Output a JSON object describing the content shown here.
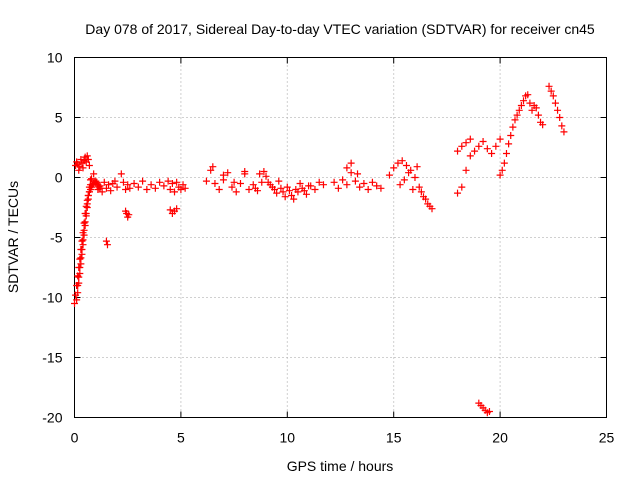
{
  "chart_data": {
    "type": "scatter",
    "title": "Day 078 of 2017, Sidereal Day-to-day VTEC variation (SDTVAR) for receiver cn45",
    "xlabel": "GPS time / hours",
    "ylabel": "SDTVAR / TECUs",
    "xlim": [
      0,
      25
    ],
    "ylim": [
      -20,
      10
    ],
    "x_ticks": [
      0,
      5,
      10,
      15,
      20,
      25
    ],
    "y_ticks": [
      -20,
      -15,
      -10,
      -5,
      0,
      5,
      10
    ],
    "grid": true,
    "legend": "none",
    "marker": "+",
    "color": "#ff0000",
    "series": [
      {
        "name": "SDTVAR",
        "x": [
          0.0,
          0.05,
          0.1,
          0.15,
          0.2,
          0.25,
          0.3,
          0.35,
          0.4,
          0.45,
          0.5,
          0.55,
          0.6,
          0.65,
          0.7,
          0.75,
          0.8,
          0.85,
          0.9,
          0.95,
          1.0,
          1.05,
          1.1,
          1.15,
          1.2,
          0.1,
          0.15,
          0.2,
          0.25,
          0.3,
          0.35,
          0.4,
          0.45,
          0.5,
          0.55,
          0.6,
          0.65,
          0.7,
          0.75,
          0.8,
          0.15,
          0.2,
          0.25,
          0.3,
          0.35,
          0.4,
          0.45,
          0.5,
          0.55,
          0.6,
          0.65,
          0.7,
          0.75,
          0.05,
          0.1,
          0.15,
          0.2,
          0.25,
          0.3,
          0.35,
          0.4,
          0.45,
          0.5,
          0.55,
          0.6,
          0.65,
          0.7,
          0.9,
          1.0,
          1.1,
          1.2,
          1.3,
          1.4,
          1.5,
          1.6,
          1.7,
          1.8,
          1.9,
          2.0,
          1.5,
          1.55,
          2.4,
          2.45,
          2.5,
          2.55,
          2.2,
          2.3,
          2.4,
          2.5,
          2.6,
          2.8,
          3.0,
          3.2,
          3.4,
          3.6,
          3.8,
          4.0,
          4.2,
          4.4,
          4.5,
          4.6,
          4.7,
          4.8,
          4.9,
          5.0,
          5.1,
          5.2,
          4.5,
          4.6,
          4.7,
          4.8,
          6.2,
          6.4,
          6.6,
          6.8,
          7.0,
          7.2,
          7.4,
          7.6,
          7.8,
          8.0,
          8.2,
          8.4,
          8.6,
          8.8,
          6.5,
          7.0,
          7.5,
          8.0,
          8.5,
          9.0,
          8.7,
          8.9,
          9.1,
          9.3,
          9.5,
          9.7,
          9.9,
          10.1,
          10.3,
          10.5,
          10.7,
          10.9,
          11.1,
          11.3,
          11.5,
          11.7,
          9.2,
          9.4,
          9.6,
          9.8,
          10.0,
          10.2,
          10.4,
          10.6,
          10.8,
          11.0,
          12.2,
          12.4,
          12.6,
          12.8,
          13.0,
          13.2,
          13.4,
          13.6,
          13.8,
          14.0,
          14.2,
          14.4,
          12.8,
          13.0,
          13.3,
          14.8,
          15.0,
          15.2,
          15.4,
          15.6,
          15.8,
          16.0,
          16.2,
          16.4,
          16.6,
          16.8,
          15.3,
          15.5,
          15.7,
          15.9,
          16.1,
          16.3,
          16.5,
          16.7,
          18.0,
          18.2,
          18.4,
          18.6,
          18.8,
          19.0,
          19.2,
          19.4,
          19.6,
          19.8,
          20.0,
          18.0,
          18.2,
          18.4,
          18.6,
          19.0,
          19.1,
          19.2,
          19.3,
          19.4,
          19.5,
          20.0,
          20.1,
          20.2,
          20.3,
          20.4,
          20.5,
          20.6,
          20.7,
          20.8,
          20.9,
          21.0,
          21.1,
          21.2,
          21.3,
          21.4,
          21.5,
          21.6,
          21.7,
          21.8,
          21.9,
          22.0,
          22.3,
          22.4,
          22.5,
          22.6,
          22.7,
          22.8,
          22.9,
          23.0
        ],
        "y": [
          -10.5,
          -9.8,
          -9.0,
          -8.2,
          -7.5,
          -6.8,
          -6.0,
          -5.3,
          -4.6,
          -3.8,
          -3.0,
          -2.4,
          -1.9,
          -1.5,
          -1.2,
          -1.0,
          -0.8,
          -0.6,
          -0.5,
          -0.4,
          -0.3,
          -0.4,
          -0.6,
          -0.8,
          -0.9,
          -10.2,
          -9.6,
          -8.8,
          -8.0,
          -7.2,
          -6.4,
          -5.6,
          -4.8,
          -4.0,
          -3.2,
          -2.5,
          -1.8,
          -1.2,
          -0.6,
          -0.1,
          -9.0,
          -8.3,
          -7.5,
          -6.7,
          -6.0,
          -5.2,
          -4.4,
          -3.7,
          -3.0,
          -2.2,
          -1.5,
          -0.8,
          -0.2,
          1.0,
          1.3,
          1.1,
          0.6,
          0.9,
          1.5,
          1.2,
          0.8,
          1.4,
          1.7,
          1.3,
          1.8,
          1.5,
          1.0,
          0.3,
          -0.5,
          -1.0,
          -0.7,
          -1.2,
          -0.4,
          -0.9,
          -0.6,
          -1.1,
          -0.5,
          -0.3,
          -0.8,
          -5.3,
          -5.6,
          -2.8,
          -3.0,
          -3.3,
          -3.1,
          0.3,
          -0.4,
          -1.0,
          -0.6,
          -0.9,
          -0.5,
          -0.8,
          -0.3,
          -1.0,
          -0.6,
          -0.9,
          -0.4,
          -0.7,
          -0.3,
          -1.0,
          -0.5,
          -1.2,
          -0.4,
          -0.8,
          -1.0,
          -0.6,
          -0.9,
          -2.7,
          -3.0,
          -2.8,
          -2.6,
          -0.3,
          0.6,
          -0.5,
          -1.0,
          -0.2,
          0.4,
          -0.8,
          -1.2,
          -0.5,
          0.3,
          -1.0,
          -0.6,
          -1.1,
          -0.4,
          0.9,
          0.2,
          -0.4,
          0.5,
          -0.9,
          0.1,
          0.3,
          0.5,
          -0.4,
          -0.8,
          -1.3,
          -0.9,
          -1.6,
          -1.1,
          -1.8,
          -1.2,
          -0.9,
          -1.4,
          -0.7,
          -1.0,
          -0.4,
          -0.6,
          -0.6,
          -1.0,
          -0.3,
          -1.2,
          -0.8,
          -1.5,
          -1.0,
          -0.5,
          -1.1,
          -0.7,
          -0.4,
          -0.9,
          -0.2,
          -0.6,
          0.4,
          -0.3,
          -0.8,
          -0.5,
          -1.0,
          -0.4,
          -0.7,
          -0.9,
          0.8,
          1.2,
          0.3,
          0.2,
          0.8,
          1.2,
          1.4,
          1.0,
          0.6,
          0.0,
          -0.8,
          -1.6,
          -2.2,
          -2.6,
          -0.6,
          -0.2,
          0.4,
          -1.0,
          0.9,
          -1.2,
          -1.8,
          -2.4,
          -1.3,
          -0.8,
          0.6,
          1.8,
          2.2,
          2.6,
          3.0,
          2.4,
          2.0,
          2.6,
          3.2,
          2.2,
          2.6,
          2.9,
          3.2,
          -18.8,
          -19.0,
          -19.2,
          -19.4,
          -19.6,
          -19.5,
          0.2,
          0.6,
          1.2,
          2.0,
          2.8,
          3.5,
          4.2,
          4.8,
          5.2,
          5.6,
          6.0,
          6.4,
          6.8,
          6.9,
          6.2,
          5.6,
          6.0,
          5.8,
          5.2,
          4.6,
          4.4,
          7.6,
          7.2,
          6.8,
          6.2,
          5.6,
          5.0,
          4.3,
          3.8
        ]
      }
    ]
  }
}
